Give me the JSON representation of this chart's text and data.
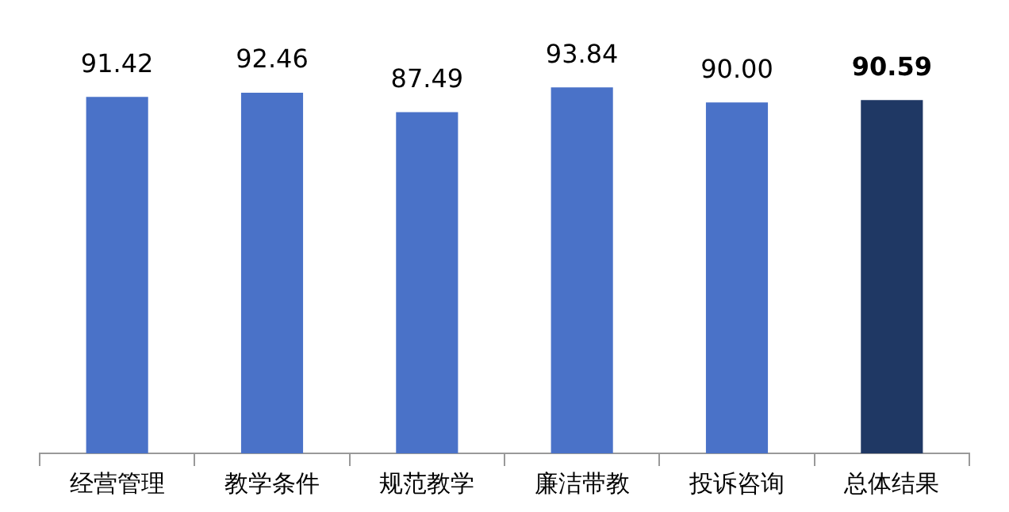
{
  "chart_data": {
    "type": "bar",
    "categories": [
      "经营管理",
      "教学条件",
      "规范教学",
      "廉洁带教",
      "投诉咨询",
      "总体结果"
    ],
    "values": [
      91.42,
      92.46,
      87.49,
      93.84,
      90.0,
      90.59
    ],
    "colors": [
      "#4a72c8",
      "#4a72c8",
      "#4a72c8",
      "#4a72c8",
      "#4a72c8",
      "#1f3864"
    ],
    "value_labels": [
      "91.42",
      "92.46",
      "87.49",
      "93.84",
      "90.00",
      "90.59"
    ],
    "tick_labels": "x",
    "grid": false,
    "legend": false
  }
}
